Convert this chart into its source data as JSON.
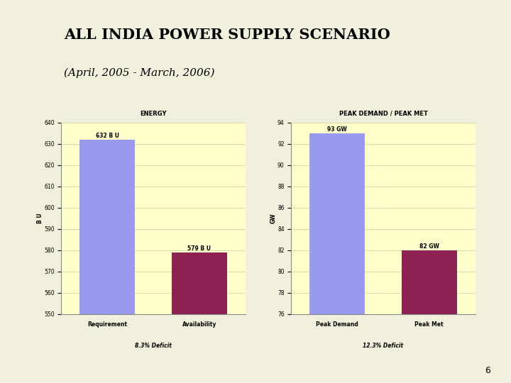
{
  "title_line1": "ALL INDIA POWER SUPPLY SCENARIO",
  "title_line2": "(April, 2005 - March, 2006)",
  "page_number": "6",
  "left_chart": {
    "title": "ENERGY",
    "categories": [
      "Requirement",
      "Availability"
    ],
    "values": [
      632.0,
      579.0
    ],
    "bar_labels": [
      "632 B U",
      "579 B U"
    ],
    "ylabel": "B U",
    "ylim": [
      550,
      640
    ],
    "yticks": [
      550,
      560,
      570,
      580,
      590,
      600,
      610,
      620,
      630,
      640
    ],
    "xlabel_extra": "8.3% Deficit",
    "bar_colors": [
      "#9999ee",
      "#8b2252"
    ],
    "bg_color": "#ffffcc"
  },
  "right_chart": {
    "title": "PEAK DEMAND / PEAK MET",
    "categories": [
      "Peak Demand",
      "Peak Met"
    ],
    "values": [
      93.0,
      82.0
    ],
    "bar_labels": [
      "93 GW",
      "82 GW"
    ],
    "ylabel": "GW",
    "ylim": [
      76,
      94
    ],
    "yticks": [
      76,
      78,
      80,
      82,
      84,
      86,
      88,
      90,
      92,
      94
    ],
    "xlabel_extra": "12.3% Deficit",
    "bar_colors": [
      "#9999ee",
      "#8b2252"
    ],
    "bg_color": "#ffffcc"
  },
  "slide_bg": "#f0f0dc",
  "header_bg": "#d4d4a8",
  "title_color": "#000000",
  "subtitle_color": "#000000"
}
